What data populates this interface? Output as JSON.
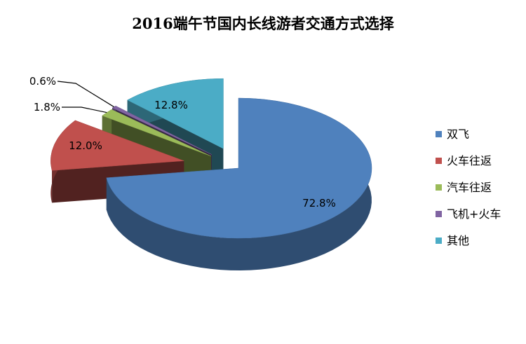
{
  "chart_data": {
    "type": "pie",
    "title": "2016端午节国内长线游者交通方式选择",
    "categories": [
      "双飞",
      "火车往返",
      "汽车往返",
      "飞机+火车",
      "其他"
    ],
    "values": [
      72.8,
      12.0,
      1.8,
      0.6,
      12.8
    ],
    "value_labels": [
      "72.8%",
      "12.0%",
      "1.8%",
      "0.6%",
      "12.8%"
    ],
    "colors": [
      "#4f81bd",
      "#c0504d",
      "#9bbb59",
      "#8064a2",
      "#4bacc6"
    ],
    "legend_position": "right",
    "style": "3d-exploded"
  }
}
